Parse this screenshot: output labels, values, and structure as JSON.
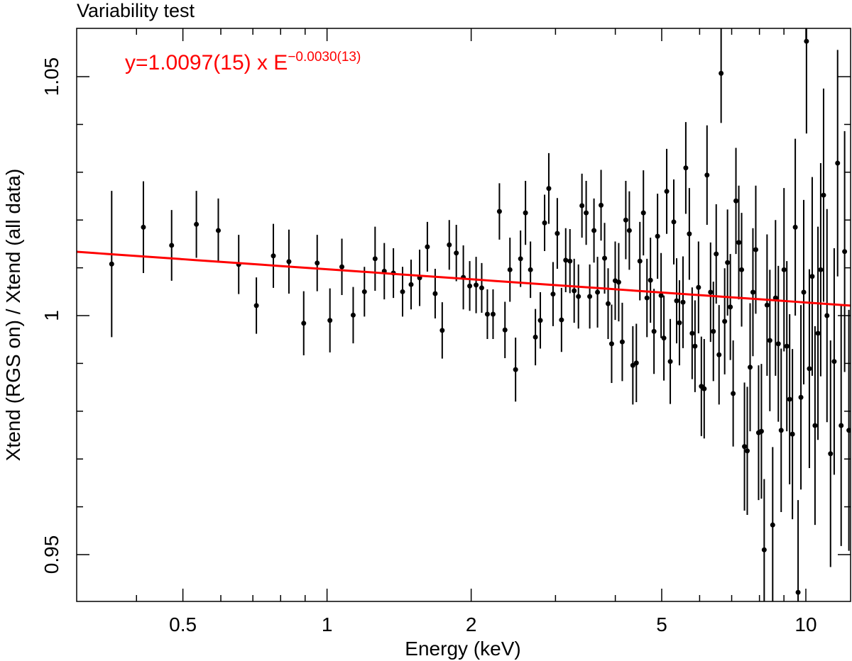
{
  "chart_data": {
    "type": "scatter",
    "title": "Variability test",
    "x_label": "Energy (keV)",
    "y_label": "Xtend (RGS on) / Xtend (all data)",
    "x_scale": "log",
    "xlim": [
      0.3,
      12.4
    ],
    "xticks": [
      0.5,
      1,
      2,
      5,
      10
    ],
    "xminorticks": [
      0.4,
      0.6,
      0.7,
      0.8,
      0.9,
      3,
      4,
      6,
      7,
      8,
      9
    ],
    "ylim": [
      0.9402,
      1.0601
    ],
    "yticks": [
      0.95,
      1,
      1.05
    ],
    "yminorticks": [
      0.96,
      0.97,
      0.98,
      0.99,
      1.01,
      1.02,
      1.03,
      1.04
    ],
    "fit": {
      "norm": 1.0097,
      "index": -0.003,
      "color": "#ff0000",
      "label": "y=1.0097(15) x E",
      "exponent_label": "−0.0030(13)"
    },
    "series": [
      {
        "color": "#000000",
        "x": [
          0.355,
          0.4135,
          0.4736,
          0.5335,
          0.5928,
          0.6539,
          0.7119,
          0.7725,
          0.8325,
          0.8939,
          0.9537,
          1.014,
          1.074,
          1.134,
          1.197,
          1.26,
          1.317,
          1.376,
          1.438,
          1.498,
          1.561,
          1.62,
          1.682,
          1.74,
          1.8,
          1.862,
          1.926,
          1.986,
          2.048,
          2.104,
          2.162,
          2.222,
          2.291,
          2.353,
          2.41,
          2.476,
          2.536,
          2.597,
          2.66,
          2.724,
          2.789,
          2.847,
          2.905,
          2.965,
          3.026,
          3.088,
          3.151,
          3.216,
          3.282,
          3.35,
          3.407,
          3.477,
          3.537,
          3.61,
          3.672,
          3.735,
          3.799,
          3.864,
          3.93,
          3.998,
          4.066,
          4.136,
          4.207,
          4.279,
          4.352,
          4.426,
          4.502,
          4.579,
          4.658,
          4.737,
          4.818,
          4.901,
          4.985,
          5.053,
          5.122,
          5.21,
          5.299,
          5.372,
          5.445,
          5.539,
          5.614,
          5.71,
          5.788,
          5.868,
          5.968,
          6.05,
          6.133,
          6.217,
          6.324,
          6.41,
          6.498,
          6.587,
          6.653,
          6.768,
          6.861,
          6.955,
          7.05,
          7.145,
          7.244,
          7.343,
          7.444,
          7.545,
          7.649,
          7.753,
          7.86,
          7.967,
          8.076,
          8.185,
          8.298,
          8.411,
          8.526,
          8.643,
          8.761,
          8.881,
          9.003,
          9.126,
          9.25,
          9.376,
          9.504,
          9.634,
          9.766,
          9.899,
          10.03,
          10.17,
          10.31,
          10.45,
          10.6,
          10.74,
          10.89,
          11.07,
          11.26,
          11.46,
          11.65,
          11.85,
          12.05,
          12.3
        ],
        "values": [
          1.0108,
          1.0185,
          1.0147,
          1.0191,
          1.0178,
          1.0107,
          1.0021,
          1.0125,
          1.0113,
          0.9984,
          1.011,
          0.999,
          1.0102,
          1.0001,
          1.005,
          1.0119,
          1.0093,
          1.0089,
          1.005,
          1.0065,
          1.0079,
          1.0144,
          1.0046,
          0.9969,
          1.0148,
          1.0131,
          1.008,
          1.0062,
          1.0064,
          1.0058,
          1.0003,
          1.0003,
          1.0218,
          0.997,
          1.0096,
          0.9887,
          1.0119,
          1.0215,
          1.0096,
          0.9955,
          0.999,
          1.0194,
          1.0266,
          1.0045,
          1.0172,
          0.9991,
          1.0116,
          1.0114,
          1.0052,
          1.004,
          1.023,
          1.0215,
          1.004,
          1.0178,
          1.0049,
          1.0231,
          1.012,
          1.0025,
          0.9941,
          1.0073,
          1.007,
          0.9945,
          1.02,
          1.0178,
          0.9896,
          0.9901,
          1.0114,
          1.0215,
          1.0037,
          1.0074,
          0.9967,
          1.0166,
          1.0042,
          0.9953,
          1.026,
          0.9904,
          1.0196,
          1.0031,
          0.9985,
          1.0028,
          1.0309,
          1.0171,
          0.9963,
          0.9936,
          1.0059,
          0.9852,
          0.9847,
          1.0294,
          1.0049,
          0.9967,
          1.0129,
          0.9918,
          1.0507,
          0.9988,
          1.0111,
          1.0018,
          0.9837,
          1.024,
          1.0153,
          1.0096,
          0.9726,
          0.9717,
          0.9892,
          1.0049,
          1.0138,
          0.9755,
          0.9758,
          0.951,
          1.0022,
          0.9948,
          0.9562,
          1.0037,
          0.9941,
          0.976,
          1.0096,
          0.9936,
          0.9825,
          0.9752,
          1.0185,
          0.9421,
          0.9829,
          1.0049,
          1.0574,
          0.9889,
          1.0082,
          0.977,
          0.9963,
          1.0096,
          1.0252,
          1.0,
          0.9711,
          0.9904,
          1.0319,
          0.977,
          1.0134,
          0.976
        ],
        "errors": [
          0.0153,
          0.0096,
          0.0074,
          0.007,
          0.0067,
          0.0062,
          0.0059,
          0.0067,
          0.0067,
          0.0067,
          0.0059,
          0.0067,
          0.0059,
          0.0059,
          0.0052,
          0.0067,
          0.0059,
          0.0052,
          0.0052,
          0.0052,
          0.0059,
          0.0052,
          0.0052,
          0.0059,
          0.0052,
          0.0059,
          0.0067,
          0.0052,
          0.0059,
          0.0052,
          0.0052,
          0.0052,
          0.0059,
          0.0059,
          0.0067,
          0.0067,
          0.0059,
          0.0067,
          0.0059,
          0.0059,
          0.0059,
          0.0059,
          0.0074,
          0.0067,
          0.0074,
          0.0067,
          0.0067,
          0.0067,
          0.0067,
          0.0067,
          0.0067,
          0.0067,
          0.0067,
          0.0067,
          0.0074,
          0.0074,
          0.0074,
          0.0074,
          0.0082,
          0.0082,
          0.0082,
          0.0082,
          0.0082,
          0.0082,
          0.0082,
          0.0082,
          0.0082,
          0.0089,
          0.0082,
          0.0089,
          0.0089,
          0.0089,
          0.0089,
          0.0089,
          0.0089,
          0.0089,
          0.0089,
          0.0089,
          0.0089,
          0.0096,
          0.0096,
          0.0096,
          0.0096,
          0.0096,
          0.0096,
          0.0104,
          0.0104,
          0.0104,
          0.0104,
          0.0104,
          0.0104,
          0.0104,
          0.0104,
          0.0111,
          0.0111,
          0.0111,
          0.0111,
          0.0111,
          0.0119,
          0.0119,
          0.0134,
          0.0134,
          0.0134,
          0.0134,
          0.0134,
          0.0141,
          0.0141,
          0.0148,
          0.0148,
          0.0148,
          0.0163,
          0.0163,
          0.0163,
          0.0171,
          0.0171,
          0.0178,
          0.0178,
          0.0178,
          0.0185,
          0.0193,
          0.0193,
          0.0193,
          0.0193,
          0.0208,
          0.0208,
          0.0208,
          0.0223,
          0.0223,
          0.0223,
          0.0223,
          0.0237,
          0.0237,
          0.0237,
          0.0252,
          0.0252,
          0.0252
        ]
      }
    ]
  }
}
